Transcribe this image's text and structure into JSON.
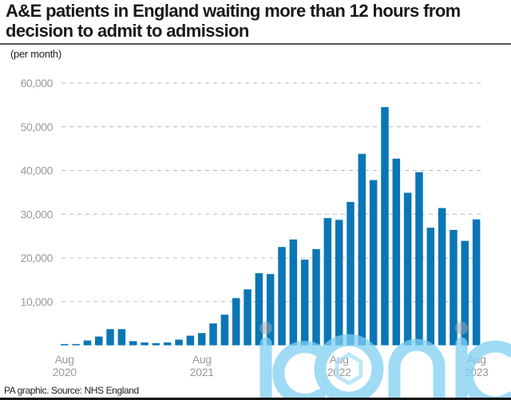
{
  "header": {
    "title": "A&E patients in England waiting more than 12 hours from decision to admit to admission",
    "unit": "(per month)"
  },
  "footer": {
    "source": "PA graphic. Source: NHS England"
  },
  "watermark": {
    "text": "iconic",
    "color": "#7fd0f2"
  },
  "colors": {
    "bar": "#0a76b6",
    "grid": "#b8b8b8",
    "tick_text": "#9a9a9a"
  },
  "chart_data": {
    "type": "bar",
    "title": "A&E patients in England waiting more than 12 hours from decision to admit to admission",
    "subtitle": "(per month)",
    "xlabel": "",
    "ylabel": "",
    "ylim": [
      0,
      60000
    ],
    "yticks": [
      10000,
      20000,
      30000,
      40000,
      50000,
      60000
    ],
    "ytick_labels": [
      "10,000",
      "20,000",
      "30,000",
      "40,000",
      "50,000",
      "60,000"
    ],
    "grid": true,
    "legend": "none",
    "categories": [
      "Aug 2020",
      "Sep 2020",
      "Oct 2020",
      "Nov 2020",
      "Dec 2020",
      "Jan 2021",
      "Feb 2021",
      "Mar 2021",
      "Apr 2021",
      "May 2021",
      "Jun 2021",
      "Jul 2021",
      "Aug 2021",
      "Sep 2021",
      "Oct 2021",
      "Nov 2021",
      "Dec 2021",
      "Jan 2022",
      "Feb 2022",
      "Mar 2022",
      "Apr 2022",
      "May 2022",
      "Jun 2022",
      "Jul 2022",
      "Aug 2022",
      "Sep 2022",
      "Oct 2022",
      "Nov 2022",
      "Dec 2022",
      "Jan 2023",
      "Feb 2023",
      "Mar 2023",
      "Apr 2023",
      "May 2023",
      "Jun 2023",
      "Jul 2023",
      "Aug 2023"
    ],
    "x_tick_labels": [
      {
        "index": 0,
        "line1": "Aug",
        "line2": "2020"
      },
      {
        "index": 12,
        "line1": "Aug",
        "line2": "2021"
      },
      {
        "index": 24,
        "line1": "Aug",
        "line2": "2022"
      },
      {
        "index": 36,
        "line1": "Aug",
        "line2": "2023"
      }
    ],
    "values": [
      300,
      300,
      1100,
      2000,
      3700,
      3700,
      950,
      650,
      500,
      650,
      1300,
      2200,
      2800,
      5000,
      7000,
      10800,
      12800,
      16500,
      16300,
      22500,
      24200,
      19600,
      22000,
      29100,
      28700,
      32800,
      43800,
      37800,
      54500,
      42700,
      34900,
      39600,
      26900,
      31400,
      26400,
      23900,
      28800
    ]
  }
}
